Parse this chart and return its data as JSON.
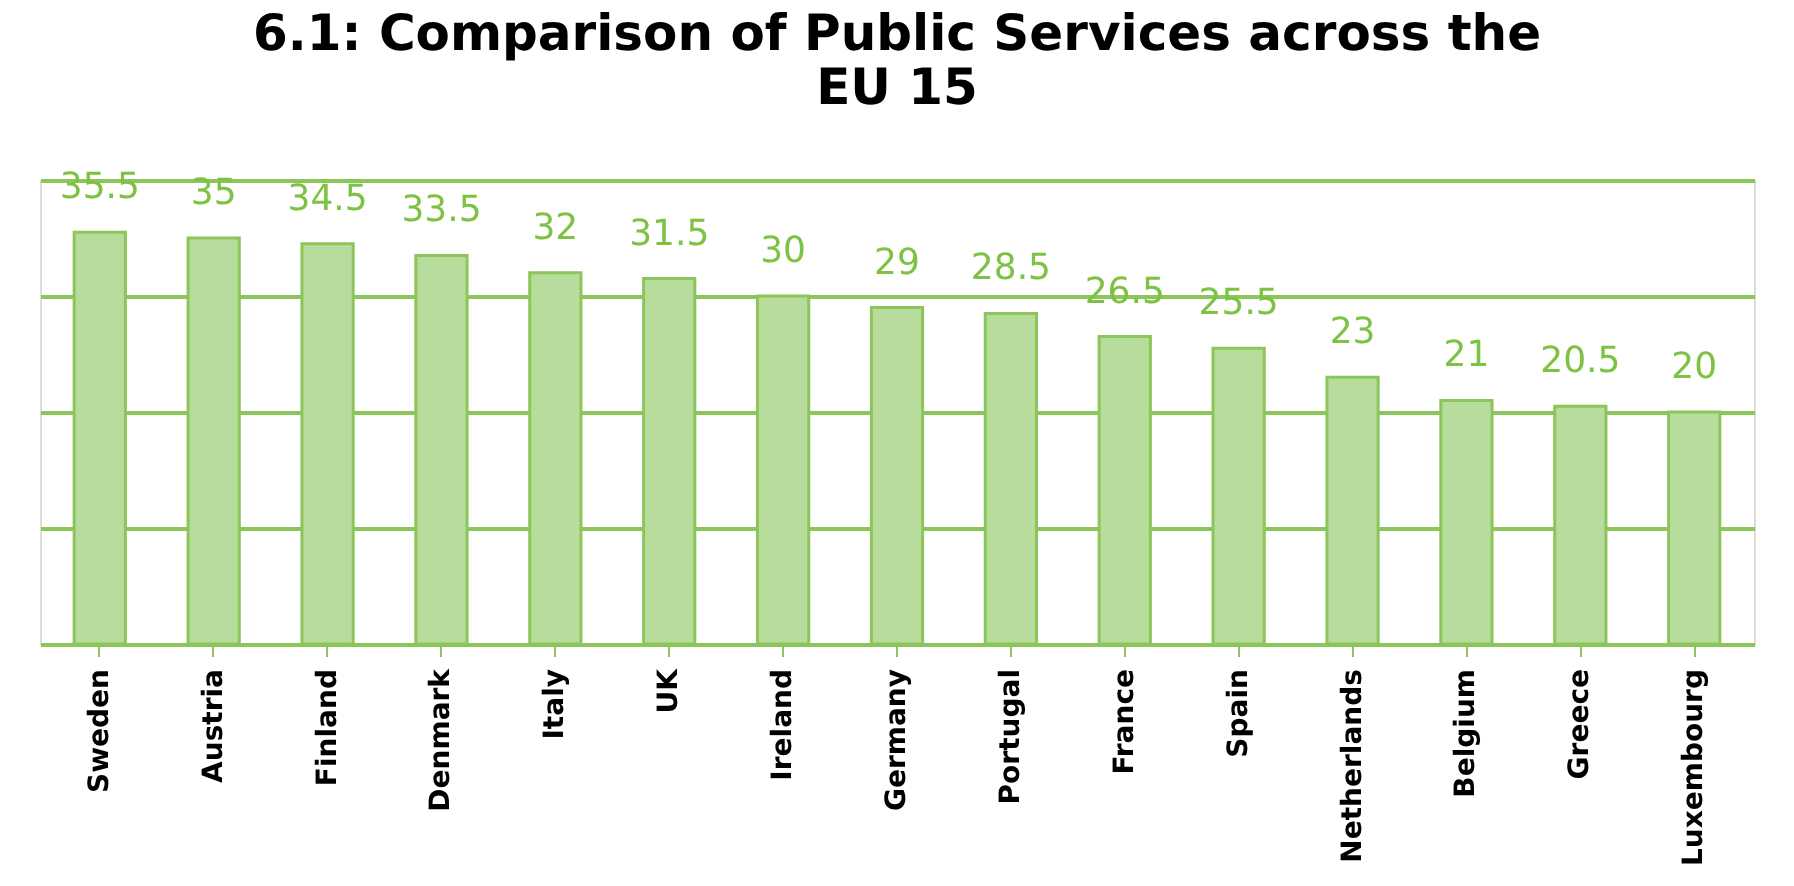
{
  "chart_data": {
    "type": "bar",
    "title": [
      "6.1: Comparison of Public Services across the",
      "EU 15"
    ],
    "categories": [
      "Sweden",
      "Austria",
      "Finland",
      "Denmark",
      "Italy",
      "UK",
      "Ireland",
      "Germany",
      "Portugal",
      "France",
      "Spain",
      "Netherlands",
      "Belgium",
      "Greece",
      "Luxembourg"
    ],
    "values": [
      35.5,
      35,
      34.5,
      33.5,
      32,
      31.5,
      30,
      29,
      28.5,
      26.5,
      25.5,
      23,
      21,
      20.5,
      20
    ],
    "color": "#b8dc9c",
    "ylim": [
      0,
      40
    ],
    "yticks": [
      {
        "value": 0,
        "label": null
      },
      {
        "value": 10,
        "label": null
      },
      {
        "value": 20,
        "label": null
      },
      {
        "value": 30,
        "label": null
      },
      {
        "value": 40,
        "label": null
      }
    ],
    "tick_labels": "x",
    "grid": "y",
    "data_labels": true
  }
}
